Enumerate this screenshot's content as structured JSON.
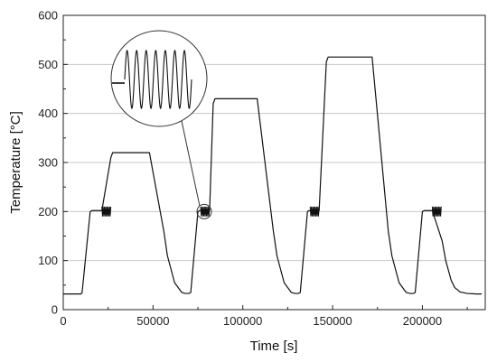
{
  "chart_data": {
    "type": "line",
    "title": "",
    "xlabel": "Time [s]",
    "ylabel": "Temperature [°C]",
    "xlim": [
      0,
      235000
    ],
    "ylim": [
      0,
      600
    ],
    "x_ticks": [
      0,
      50000,
      100000,
      150000,
      200000
    ],
    "x_tick_labels": [
      "0",
      "50000",
      "100000",
      "150000",
      "200000"
    ],
    "y_ticks": [
      0,
      100,
      200,
      300,
      400,
      500,
      600
    ],
    "y_tick_labels": [
      "0",
      "100",
      "200",
      "300",
      "400",
      "500",
      "600"
    ],
    "grid": "horizontal",
    "line_color": "#111111",
    "grid_color": "#c8c8c8",
    "series": [
      {
        "x": [
          0,
          10000,
          10500,
          15000,
          16000,
          21500,
          26500,
          27500,
          48000,
          56000,
          58000,
          62000,
          66000,
          68000,
          70000,
          71000,
          75000,
          76000,
          81500,
          83500,
          84500,
          108000,
          117000,
          119000,
          123000,
          127000,
          129000,
          131000,
          132000,
          136000,
          137000,
          142500,
          146500,
          147500,
          172000,
          181000,
          183000,
          187000,
          191000,
          193000,
          195000,
          196000,
          200000,
          201000,
          205500,
          211000,
          213000,
          216000,
          218000,
          221000,
          225000,
          230000,
          233000
        ],
        "values": [
          32,
          32,
          35,
          200,
          202,
          202,
          310,
          320,
          320,
          160,
          110,
          55,
          35,
          33,
          33,
          35,
          200,
          202,
          202,
          420,
          430,
          430,
          160,
          110,
          55,
          35,
          33,
          33,
          35,
          200,
          202,
          202,
          505,
          515,
          515,
          160,
          110,
          55,
          35,
          33,
          33,
          35,
          200,
          202,
          202,
          140,
          100,
          60,
          45,
          36,
          33,
          32,
          32
        ]
      }
    ],
    "oscillations": [
      {
        "x_start": 21500,
        "x_end": 26500,
        "center": 200,
        "amplitude": 10,
        "cycles": 7
      },
      {
        "x_start": 76500,
        "x_end": 81500,
        "center": 200,
        "amplitude": 10,
        "cycles": 7
      },
      {
        "x_start": 137500,
        "x_end": 142500,
        "center": 200,
        "amplitude": 10,
        "cycles": 7
      },
      {
        "x_start": 205500,
        "x_end": 210500,
        "center": 200,
        "amplitude": 10,
        "cycles": 7
      }
    ],
    "inset": {
      "description_shown": "magnified oscillation",
      "source_x": 78500,
      "source_y": 200,
      "cycles": 7
    }
  }
}
